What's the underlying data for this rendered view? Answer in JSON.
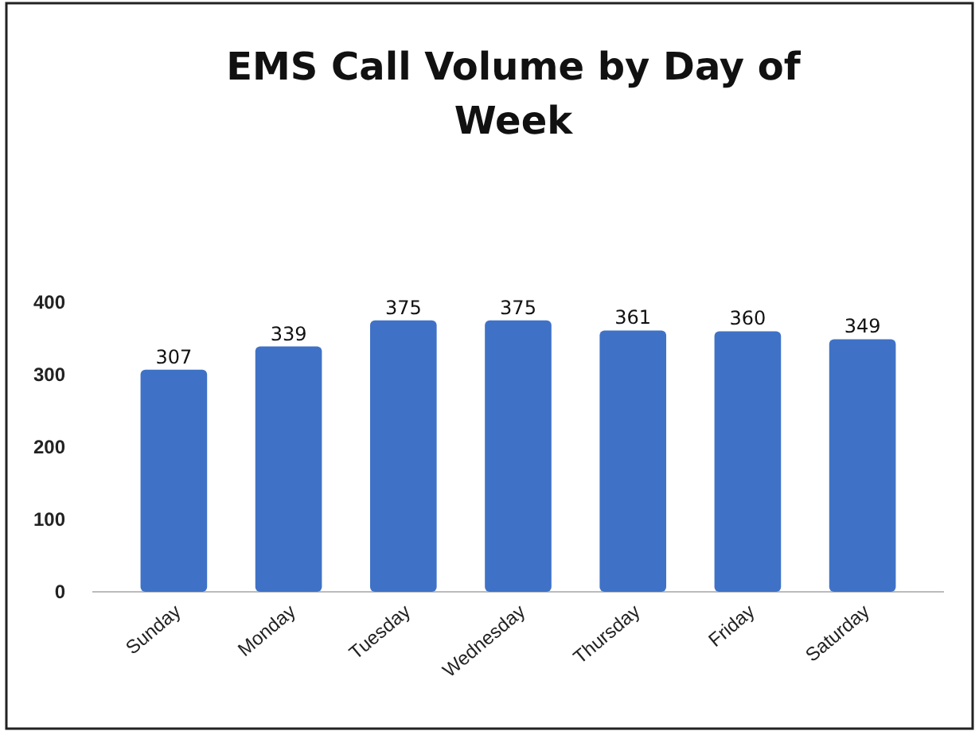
{
  "chart_data": {
    "type": "bar",
    "title": "EMS Call Volume by Day of Week",
    "categories": [
      "Sunday",
      "Monday",
      "Tuesday",
      "Wednesday",
      "Thursday",
      "Friday",
      "Saturday"
    ],
    "values": [
      307,
      339,
      375,
      375,
      361,
      360,
      349
    ],
    "color": "#3f72c6",
    "ylim": [
      0,
      400
    ],
    "yticks": [
      0,
      100,
      200,
      300,
      400
    ],
    "grid": false,
    "data_labels": true
  }
}
